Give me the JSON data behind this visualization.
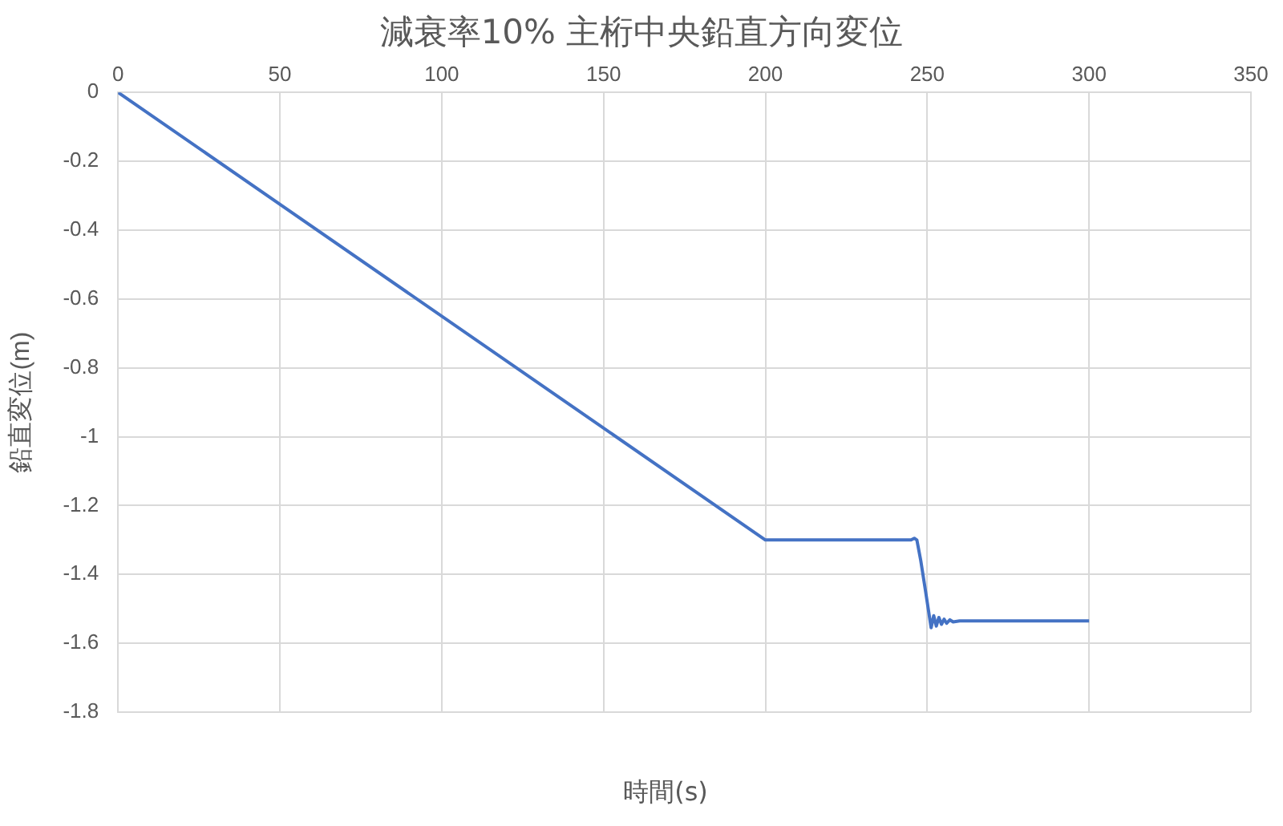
{
  "chart_data": {
    "type": "line",
    "title": "減衰率10% 主桁中央鉛直方向変位",
    "xlabel": "時間(s)",
    "ylabel": "鉛直変位(m)",
    "x": [
      0,
      200,
      245,
      246,
      246.8,
      248,
      249.5,
      251.2,
      252,
      252.8,
      253.6,
      254.4,
      255.2,
      256,
      257,
      258,
      260,
      300
    ],
    "series": [
      {
        "color": "#4472c4",
        "values": [
          0,
          -1.3,
          -1.3,
          -1.295,
          -1.3,
          -1.36,
          -1.45,
          -1.555,
          -1.52,
          -1.55,
          -1.525,
          -1.545,
          -1.53,
          -1.542,
          -1.532,
          -1.538,
          -1.535,
          -1.535
        ]
      }
    ],
    "xlim": [
      0,
      350
    ],
    "xticks": [
      0,
      50,
      100,
      150,
      200,
      250,
      300,
      350
    ],
    "ylim": [
      -1.8,
      0
    ],
    "yticks": [
      0,
      -0.2,
      -0.4,
      -0.6,
      -0.8,
      -1,
      -1.2,
      -1.4,
      -1.6,
      -1.8
    ],
    "grid": true,
    "legend": false,
    "marker": "none",
    "line_style": "solid"
  }
}
